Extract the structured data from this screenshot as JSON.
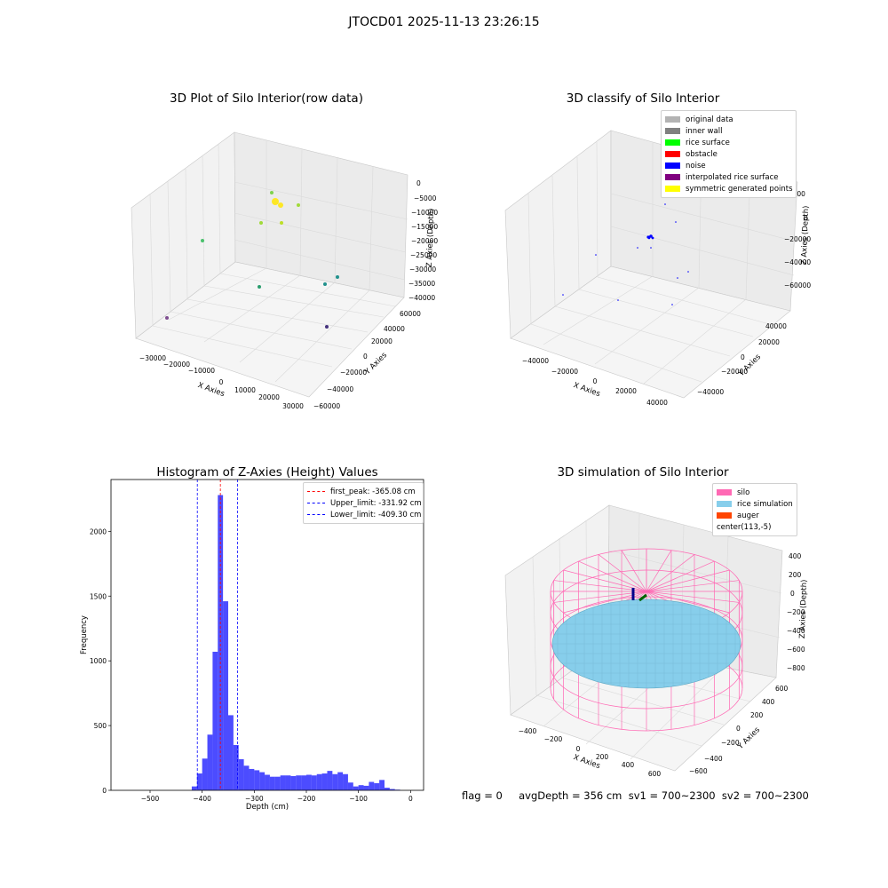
{
  "figure": {
    "title": "JTOCD01 2025-11-13 23:26:15",
    "footer_text": "flag = 0     avgDepth = 356 cm  sv1 = 700~2300  sv2 = 700~2300"
  },
  "panels": {
    "raw": {
      "title": "3D Plot of Silo Interior(row data)",
      "xlabel": "X Axies",
      "ylabel": "Y Axies",
      "zlabel": "Z Axies (Depth)",
      "xticks": [
        "-30000",
        "-20000",
        "-10000",
        "0",
        "10000",
        "20000",
        "30000"
      ],
      "yticks": [
        "-60000",
        "-40000",
        "-20000",
        "0",
        "20000",
        "40000",
        "60000"
      ],
      "zticks": [
        "0",
        "-5000",
        "-10000",
        "-15000",
        "-20000",
        "-25000",
        "-30000",
        "-35000",
        "-40000"
      ]
    },
    "classify": {
      "title": "3D classify of Silo Interior",
      "xlabel": "X Axies",
      "ylabel": "Y Axies",
      "zlabel": "Z Axies (Depth)",
      "xticks": [
        "-40000",
        "-20000",
        "0",
        "20000",
        "40000"
      ],
      "yticks": [
        "-40000",
        "-20000",
        "0",
        "20000",
        "40000"
      ],
      "zticks": [
        "20000",
        "0",
        "-20000",
        "-40000",
        "-60000"
      ],
      "legend": [
        {
          "label": "original data",
          "color": "#b3b3b3"
        },
        {
          "label": "inner wall",
          "color": "#808080"
        },
        {
          "label": "rice surface",
          "color": "#00ff00"
        },
        {
          "label": "obstacle",
          "color": "#ff0000"
        },
        {
          "label": "noise",
          "color": "#0000ff"
        },
        {
          "label": "interpolated rice surface",
          "color": "#800080"
        },
        {
          "label": "symmetric generated points",
          "color": "#ffff00"
        }
      ]
    },
    "simulation": {
      "title": "3D simulation of Silo Interior",
      "xlabel": "X Axies",
      "ylabel": "Y Axies",
      "zlabel": "Z Axies (Depth)",
      "xticks": [
        "-400",
        "-200",
        "0",
        "200",
        "400",
        "600"
      ],
      "yticks": [
        "-600",
        "-400",
        "-200",
        "0",
        "200",
        "400",
        "600"
      ],
      "zticks": [
        "400",
        "200",
        "0",
        "-200",
        "-400",
        "-600",
        "-800"
      ],
      "legend": [
        {
          "label": "silo",
          "color": "#ff69b4"
        },
        {
          "label": "rice simulation",
          "color": "#87ceeb"
        },
        {
          "label": "auger",
          "color": "#ff4500"
        },
        {
          "label": "center(113,-5)",
          "color": ""
        }
      ],
      "colors": {
        "silo": "#ff69b4",
        "rice": "#87ceeb"
      }
    }
  },
  "chart_data": {
    "type": "bar",
    "title": "Histogram of Z-Axies (Height) Values",
    "xlabel": "Depth (cm)",
    "ylabel": "Frequency",
    "xlim": [
      -575,
      25
    ],
    "ylim": [
      0,
      2400
    ],
    "xticks": [
      -500,
      -400,
      -300,
      -200,
      -100,
      0
    ],
    "yticks": [
      0,
      500,
      1000,
      1500,
      2000
    ],
    "bar_color": "#0000ff",
    "bin_edges": [
      -420,
      -410,
      -400,
      -390,
      -380,
      -370,
      -360,
      -350,
      -340,
      -330,
      -320,
      -310,
      -300,
      -290,
      -280,
      -270,
      -260,
      -250,
      -240,
      -230,
      -220,
      -210,
      -200,
      -190,
      -180,
      -170,
      -160,
      -150,
      -140,
      -130,
      -120,
      -110,
      -100,
      -90,
      -80,
      -70,
      -60,
      -50,
      -40,
      -30,
      -20,
      -10,
      0
    ],
    "values": [
      30,
      130,
      245,
      430,
      1070,
      2280,
      1460,
      580,
      350,
      240,
      190,
      165,
      155,
      140,
      120,
      105,
      105,
      115,
      115,
      110,
      115,
      115,
      120,
      115,
      125,
      130,
      150,
      125,
      140,
      125,
      60,
      30,
      40,
      35,
      65,
      55,
      80,
      20,
      10,
      5,
      0,
      0
    ],
    "reference_lines": [
      {
        "label": "first_peak: -365.08 cm",
        "x": -365.08,
        "color": "#ff0000"
      },
      {
        "label": "Upper_limit: -331.92 cm",
        "x": -331.92,
        "color": "#0000ff"
      },
      {
        "label": "Lower_limit: -409.30 cm",
        "x": -409.3,
        "color": "#0000ff"
      }
    ],
    "legend_position": "top-right"
  }
}
